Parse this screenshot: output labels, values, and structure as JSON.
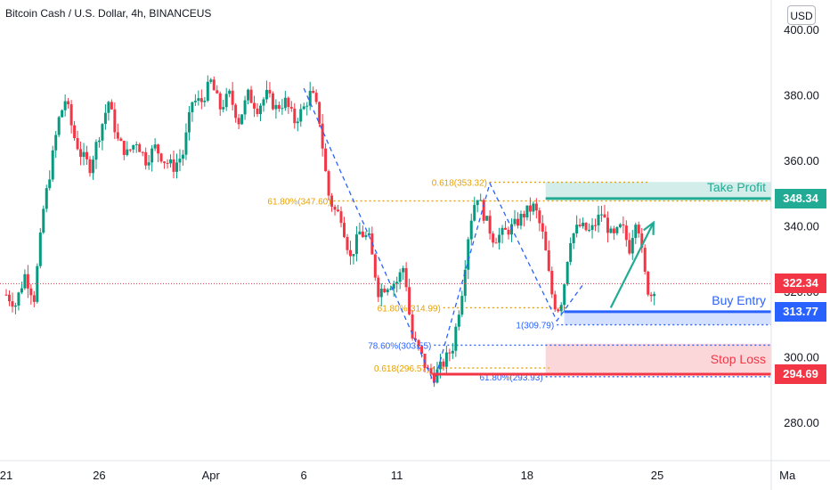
{
  "header": {
    "title": "Bitcoin Cash / U.S. Dollar, 4h, BINANCEUS",
    "currency": "USD"
  },
  "chart_data": {
    "type": "candlestick",
    "ylim": [
      270,
      402
    ],
    "y_ticks": [
      "280.00",
      "300.00",
      "320.00",
      "340.00",
      "360.00",
      "380.00",
      "400.00"
    ],
    "x_ticks": [
      "21",
      "26",
      "Apr",
      "6",
      "11",
      "18",
      "25",
      "Ma"
    ],
    "x_tick_days": [
      0,
      5,
      11,
      16,
      21,
      28,
      35,
      42
    ],
    "x_range_days": [
      0,
      43
    ],
    "candle_interval_days": 0.1667,
    "grid": false,
    "path": [
      [
        0.0,
        319
      ],
      [
        0.5,
        316
      ],
      [
        1.0,
        325
      ],
      [
        1.5,
        318
      ],
      [
        2.0,
        345
      ],
      [
        2.4,
        358
      ],
      [
        2.8,
        372
      ],
      [
        3.2,
        379
      ],
      [
        3.6,
        368
      ],
      [
        4.0,
        362
      ],
      [
        4.5,
        358
      ],
      [
        5.0,
        368
      ],
      [
        5.5,
        378
      ],
      [
        6.0,
        366
      ],
      [
        6.5,
        362
      ],
      [
        7.0,
        366
      ],
      [
        7.5,
        360
      ],
      [
        8.0,
        364
      ],
      [
        8.5,
        360
      ],
      [
        9.0,
        358
      ],
      [
        9.5,
        362
      ],
      [
        10.0,
        378
      ],
      [
        10.5,
        378
      ],
      [
        11.0,
        384
      ],
      [
        11.5,
        376
      ],
      [
        12.0,
        380
      ],
      [
        12.5,
        372
      ],
      [
        13.0,
        380
      ],
      [
        13.5,
        376
      ],
      [
        14.0,
        380
      ],
      [
        14.5,
        376
      ],
      [
        15.0,
        378
      ],
      [
        15.5,
        372
      ],
      [
        16.0,
        376
      ],
      [
        16.4,
        381
      ],
      [
        16.8,
        374
      ],
      [
        17.3,
        350
      ],
      [
        17.6,
        345
      ],
      [
        18.0,
        343
      ],
      [
        18.5,
        330
      ],
      [
        19.0,
        338
      ],
      [
        19.5,
        336
      ],
      [
        20.0,
        320
      ],
      [
        20.5,
        322
      ],
      [
        21.0,
        323
      ],
      [
        21.4,
        328
      ],
      [
        21.8,
        306
      ],
      [
        22.2,
        302
      ],
      [
        22.6,
        296
      ],
      [
        23.0,
        294
      ],
      [
        23.5,
        298
      ],
      [
        24.0,
        303
      ],
      [
        24.5,
        320
      ],
      [
        24.9,
        340
      ],
      [
        25.3,
        350
      ],
      [
        25.7,
        343
      ],
      [
        26.2,
        336
      ],
      [
        26.8,
        338
      ],
      [
        27.3,
        340
      ],
      [
        27.9,
        344
      ],
      [
        28.4,
        346
      ],
      [
        28.9,
        336
      ],
      [
        29.3,
        320
      ],
      [
        29.6,
        314
      ],
      [
        29.9,
        318
      ],
      [
        30.3,
        336
      ],
      [
        30.8,
        340
      ],
      [
        31.4,
        338
      ],
      [
        32.0,
        344
      ],
      [
        32.6,
        336
      ],
      [
        33.1,
        340
      ],
      [
        33.5,
        333
      ],
      [
        33.9,
        344
      ],
      [
        34.3,
        326
      ],
      [
        34.6,
        318
      ],
      [
        34.9,
        322
      ]
    ],
    "fib_lines": [
      {
        "label": "0.618(353.32)",
        "value": 353.32
      },
      {
        "label": "61.80%(347.60)",
        "value": 347.6
      },
      {
        "label": "61.80%(314.99)",
        "value": 314.99
      },
      {
        "label": "1(309.79)",
        "value": 309.79
      },
      {
        "label": "78.60%(303.55)",
        "value": 303.55
      },
      {
        "label": "0.618(296.57)",
        "value": 296.57
      },
      {
        "label": "61.80%(293.93)",
        "value": 293.93
      }
    ],
    "harmonic_pattern": [
      [
        16.0,
        382
      ],
      [
        23.0,
        292
      ],
      [
        26.0,
        353
      ],
      [
        29.6,
        311
      ],
      [
        31.0,
        322
      ]
    ],
    "projection_arrow": [
      [
        32.5,
        315
      ],
      [
        34.8,
        341
      ]
    ],
    "levels": {
      "take_profit": {
        "label": "Take Profit",
        "value": 348.34,
        "display": "348.34",
        "color": "#22ab94"
      },
      "buy_entry": {
        "label": "Buy Entry",
        "value": 313.77,
        "display": "313.77",
        "color": "#2962ff"
      },
      "stop_loss": {
        "label": "Stop Loss",
        "value": 294.69,
        "display": "294.69",
        "color": "#f23645"
      },
      "last_price": {
        "value": 322.34,
        "display": "322.34",
        "color": "#f23645"
      }
    },
    "zones": [
      {
        "name": "take-profit-zone",
        "from_value": 348.34,
        "to_value": 353.4,
        "from_day": 29.0,
        "color": "#22ab94"
      },
      {
        "name": "buy-entry-zone",
        "from_value": 309.8,
        "to_value": 313.77,
        "from_day": 30.0,
        "color": "#2962ff"
      },
      {
        "name": "stop-loss-zone",
        "from_value": 294.69,
        "to_value": 304.0,
        "from_day": 29.0,
        "color": "#f23645"
      }
    ],
    "colors": {
      "up": "#089981",
      "down": "#f23645",
      "fib": "#e8a100",
      "dash": "#2962ff",
      "arrow": "#22ab94"
    }
  }
}
